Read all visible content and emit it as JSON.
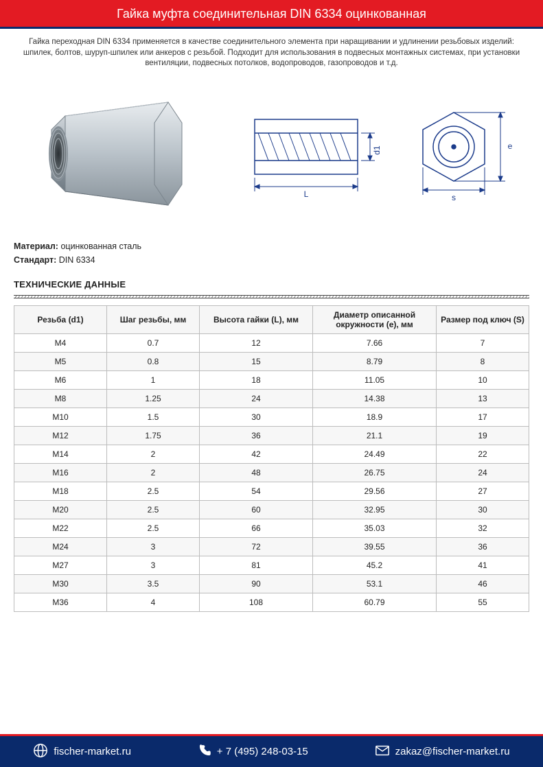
{
  "header": {
    "title": "Гайка муфта соединительная DIN 6334 оцинкованная",
    "bg_color": "#e31b23",
    "border_color": "#0a2a6b",
    "text_color": "#ffffff"
  },
  "description": "Гайка переходная DIN 6334 применяется в качестве соединительного элемента при наращивании и удлинении резьбовых изделий: шпилек, болтов, шуруп-шпилек или анкеров с резьбой. Подходит для использования в подвесных монтажных системах, при установки вентиляции, подвесных потолков, водопроводов, газопроводов и т.д.",
  "meta": {
    "material_label": "Материал:",
    "material_value": "оцинкованная сталь",
    "standard_label": "Стандарт:",
    "standard_value": "DIN 6334"
  },
  "section_title": "ТЕХНИЧЕСКИЕ ДАННЫЕ",
  "diagram_labels": {
    "L": "L",
    "d1": "d1",
    "s": "s",
    "e": "e"
  },
  "table": {
    "columns": [
      "Резьба (d1)",
      "Шаг резьбы, мм",
      "Высота гайки (L), мм",
      "Диаметр описанной окружности (e), мм",
      "Размер под ключ (S)"
    ],
    "col_widths": [
      "18%",
      "18%",
      "22%",
      "24%",
      "18%"
    ],
    "rows": [
      [
        "M4",
        "0.7",
        "12",
        "7.66",
        "7"
      ],
      [
        "M5",
        "0.8",
        "15",
        "8.79",
        "8"
      ],
      [
        "M6",
        "1",
        "18",
        "11.05",
        "10"
      ],
      [
        "M8",
        "1.25",
        "24",
        "14.38",
        "13"
      ],
      [
        "M10",
        "1.5",
        "30",
        "18.9",
        "17"
      ],
      [
        "M12",
        "1.75",
        "36",
        "21.1",
        "19"
      ],
      [
        "M14",
        "2",
        "42",
        "24.49",
        "22"
      ],
      [
        "M16",
        "2",
        "48",
        "26.75",
        "24"
      ],
      [
        "M18",
        "2.5",
        "54",
        "29.56",
        "27"
      ],
      [
        "M20",
        "2.5",
        "60",
        "32.95",
        "30"
      ],
      [
        "M22",
        "2.5",
        "66",
        "35.03",
        "32"
      ],
      [
        "M24",
        "3",
        "72",
        "39.55",
        "36"
      ],
      [
        "M27",
        "3",
        "81",
        "45.2",
        "41"
      ],
      [
        "M30",
        "3.5",
        "90",
        "53.1",
        "46"
      ],
      [
        "M36",
        "4",
        "108",
        "60.79",
        "55"
      ]
    ]
  },
  "footer": {
    "bg_color": "#0a2a6b",
    "border_color": "#e31b23",
    "website": "fischer-market.ru",
    "phone": "+ 7 (495) 248-03-15",
    "email": "zakaz@fischer-market.ru"
  }
}
